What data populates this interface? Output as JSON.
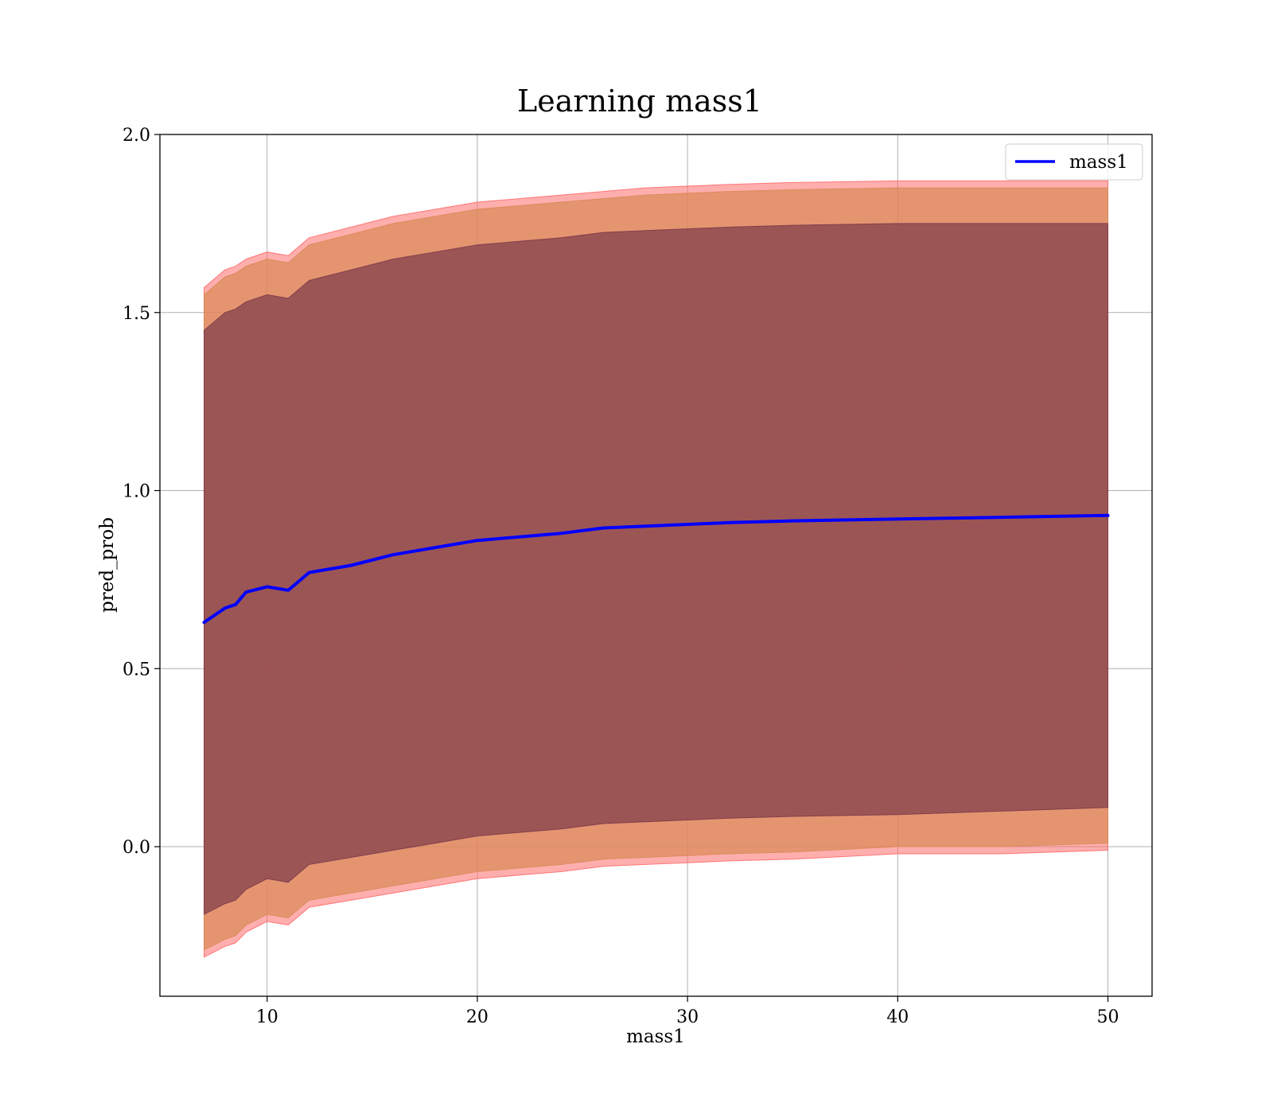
{
  "chart_data": {
    "type": "area",
    "title": "Learning mass1",
    "xlabel": "mass1",
    "ylabel": "pred_prob",
    "xlim": [
      4.9,
      52.1
    ],
    "ylim": [
      -0.42,
      2.0
    ],
    "xticks": [
      10,
      20,
      30,
      40,
      50
    ],
    "yticks": [
      0.0,
      0.5,
      1.0,
      1.5,
      2.0
    ],
    "xtick_labels": [
      "10",
      "20",
      "30",
      "40",
      "50"
    ],
    "ytick_labels": [
      "0.0",
      "0.5",
      "1.0",
      "1.5",
      "2.0"
    ],
    "grid": true,
    "legend": {
      "placement": "top-right",
      "entries": [
        "mass1"
      ]
    },
    "series": [
      {
        "name": "mass1",
        "color": "#0000ff",
        "x": [
          7,
          8,
          8.5,
          9,
          10,
          11,
          12,
          14,
          16,
          18,
          20,
          22,
          24,
          26,
          28,
          30,
          32,
          35,
          40,
          45,
          50
        ],
        "values": [
          0.63,
          0.67,
          0.68,
          0.715,
          0.73,
          0.72,
          0.77,
          0.79,
          0.82,
          0.84,
          0.86,
          0.87,
          0.88,
          0.895,
          0.9,
          0.905,
          0.91,
          0.915,
          0.92,
          0.925,
          0.93
        ]
      }
    ],
    "bands": [
      {
        "sigma": 1,
        "color": "#7d3a4a",
        "opacity": 0.7,
        "upper": [
          1.45,
          1.5,
          1.51,
          1.53,
          1.55,
          1.54,
          1.59,
          1.62,
          1.65,
          1.67,
          1.69,
          1.7,
          1.71,
          1.725,
          1.73,
          1.735,
          1.74,
          1.745,
          1.75,
          1.75,
          1.75
        ],
        "lower": [
          -0.19,
          -0.16,
          -0.15,
          -0.12,
          -0.09,
          -0.1,
          -0.05,
          -0.03,
          -0.01,
          0.01,
          0.03,
          0.04,
          0.05,
          0.065,
          0.07,
          0.075,
          0.08,
          0.085,
          0.09,
          0.1,
          0.11
        ]
      },
      {
        "sigma": 2,
        "color": "#d98a55",
        "opacity": 0.7,
        "upper": [
          1.55,
          1.6,
          1.61,
          1.63,
          1.65,
          1.64,
          1.69,
          1.72,
          1.75,
          1.77,
          1.79,
          1.8,
          1.81,
          1.82,
          1.83,
          1.835,
          1.84,
          1.845,
          1.85,
          1.85,
          1.85
        ],
        "lower": [
          -0.29,
          -0.26,
          -0.25,
          -0.22,
          -0.19,
          -0.2,
          -0.15,
          -0.13,
          -0.11,
          -0.09,
          -0.07,
          -0.06,
          -0.05,
          -0.035,
          -0.03,
          -0.025,
          -0.02,
          -0.015,
          0.0,
          0.0,
          0.01
        ]
      },
      {
        "sigma": 3,
        "color": "#ff6b6b",
        "opacity": 0.55,
        "upper": [
          1.57,
          1.62,
          1.63,
          1.65,
          1.67,
          1.66,
          1.71,
          1.74,
          1.77,
          1.79,
          1.81,
          1.82,
          1.83,
          1.84,
          1.85,
          1.855,
          1.86,
          1.865,
          1.87,
          1.87,
          1.87
        ],
        "lower": [
          -0.31,
          -0.28,
          -0.27,
          -0.24,
          -0.21,
          -0.22,
          -0.17,
          -0.15,
          -0.13,
          -0.11,
          -0.09,
          -0.08,
          -0.07,
          -0.055,
          -0.05,
          -0.045,
          -0.04,
          -0.035,
          -0.02,
          -0.02,
          -0.01
        ]
      }
    ]
  }
}
